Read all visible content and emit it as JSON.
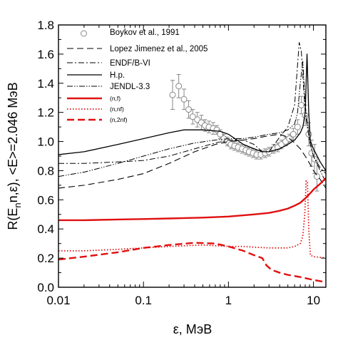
{
  "chart_data": {
    "type": "line",
    "xlabel": "ε, МэВ",
    "ylabel": "R(En,ε),  <E>=2.046 МэВ",
    "ylabel_sub": "n",
    "xscale": "log",
    "xlim": [
      0.01,
      14
    ],
    "ylim": [
      0.0,
      1.8
    ],
    "grid": false,
    "legend_position": "top-right",
    "xticks": [
      {
        "value": 0.01,
        "label": "0.01"
      },
      {
        "value": 0.1,
        "label": "0.1"
      },
      {
        "value": 1,
        "label": "1"
      },
      {
        "value": 10,
        "label": "10"
      }
    ],
    "yticks": [
      {
        "value": 0.0,
        "label": "0.0"
      },
      {
        "value": 0.2,
        "label": "0.2"
      },
      {
        "value": 0.4,
        "label": "0.4"
      },
      {
        "value": 0.6,
        "label": "0.6"
      },
      {
        "value": 0.8,
        "label": "0.8"
      },
      {
        "value": 1.0,
        "label": "1.0"
      },
      {
        "value": 1.2,
        "label": "1.2"
      },
      {
        "value": 1.4,
        "label": "1.4"
      },
      {
        "value": 1.6,
        "label": "1.6"
      },
      {
        "value": 1.8,
        "label": "1.8"
      }
    ],
    "series": [
      {
        "name": "Boykov et al., 1991",
        "kind": "points",
        "color": "#888888",
        "points": [
          {
            "x": 0.22,
            "y": 1.32,
            "err": 0.1
          },
          {
            "x": 0.26,
            "y": 1.38,
            "err": 0.08
          },
          {
            "x": 0.3,
            "y": 1.29,
            "err": 0.07
          },
          {
            "x": 0.34,
            "y": 1.22,
            "err": 0.06
          },
          {
            "x": 0.38,
            "y": 1.17,
            "err": 0.05
          },
          {
            "x": 0.43,
            "y": 1.15,
            "err": 0.05
          },
          {
            "x": 0.48,
            "y": 1.13,
            "err": 0.05
          },
          {
            "x": 0.53,
            "y": 1.11,
            "err": 0.04
          },
          {
            "x": 0.59,
            "y": 1.1,
            "err": 0.04
          },
          {
            "x": 0.66,
            "y": 1.09,
            "err": 0.04
          },
          {
            "x": 0.73,
            "y": 1.08,
            "err": 0.03
          },
          {
            "x": 0.8,
            "y": 1.05,
            "err": 0.03
          },
          {
            "x": 0.88,
            "y": 1.02,
            "err": 0.03
          },
          {
            "x": 0.97,
            "y": 1.0,
            "err": 0.03
          },
          {
            "x": 1.07,
            "y": 0.98,
            "err": 0.03
          },
          {
            "x": 1.18,
            "y": 0.97,
            "err": 0.03
          },
          {
            "x": 1.3,
            "y": 0.96,
            "err": 0.03
          },
          {
            "x": 1.45,
            "y": 0.95,
            "err": 0.03
          },
          {
            "x": 1.6,
            "y": 0.94,
            "err": 0.03
          },
          {
            "x": 1.75,
            "y": 0.93,
            "err": 0.03
          },
          {
            "x": 1.95,
            "y": 0.92,
            "err": 0.03
          },
          {
            "x": 2.15,
            "y": 0.91,
            "err": 0.03
          },
          {
            "x": 2.4,
            "y": 0.91,
            "err": 0.03
          },
          {
            "x": 2.7,
            "y": 0.92,
            "err": 0.03
          },
          {
            "x": 3.0,
            "y": 0.93,
            "err": 0.03
          },
          {
            "x": 3.4,
            "y": 0.95,
            "err": 0.03
          },
          {
            "x": 3.8,
            "y": 0.96,
            "err": 0.03
          },
          {
            "x": 4.2,
            "y": 0.98,
            "err": 0.03
          },
          {
            "x": 4.7,
            "y": 1.0,
            "err": 0.03
          },
          {
            "x": 5.2,
            "y": 1.02,
            "err": 0.03
          },
          {
            "x": 5.8,
            "y": 1.05,
            "err": 0.04
          },
          {
            "x": 6.5,
            "y": 1.1,
            "err": 0.05
          },
          {
            "x": 7.2,
            "y": 1.25,
            "err": 0.06
          },
          {
            "x": 8.0,
            "y": 1.18,
            "err": 0.07
          },
          {
            "x": 8.8,
            "y": 1.05,
            "err": 0.08
          },
          {
            "x": 9.5,
            "y": 0.92,
            "err": 0.09
          },
          {
            "x": 10.3,
            "y": 0.88,
            "err": 0.1
          },
          {
            "x": 11.0,
            "y": 0.76,
            "err": 0.1
          }
        ]
      },
      {
        "name": "Lopez Jimenez et al., 2005",
        "kind": "line",
        "style": "longdash",
        "color": "#000000",
        "x": [
          0.01,
          0.02,
          0.05,
          0.1,
          0.2,
          0.4,
          0.7,
          1.0,
          1.5,
          2.0,
          3.0,
          4.0,
          5.0,
          6.0,
          7.0,
          8.0,
          9.0,
          10.0,
          12.0,
          14.0
        ],
        "y": [
          0.68,
          0.7,
          0.74,
          0.78,
          0.85,
          0.93,
          0.98,
          1.0,
          1.01,
          1.02,
          1.04,
          1.05,
          1.03,
          0.99,
          0.95,
          0.9,
          0.85,
          0.8,
          0.74,
          0.68
        ]
      },
      {
        "name": "ENDF/B-VI",
        "kind": "line",
        "style": "dashdot",
        "color": "#000000",
        "x": [
          0.01,
          0.02,
          0.05,
          0.1,
          0.2,
          0.4,
          0.7,
          1.0,
          1.5,
          2.0,
          2.5,
          3.0,
          4.0,
          5.0,
          6.0,
          6.8,
          7.2,
          7.6,
          8.0,
          9.0,
          10.0,
          12.0,
          14.0
        ],
        "y": [
          0.85,
          0.85,
          0.86,
          0.87,
          0.9,
          0.95,
          0.99,
          1.01,
          1.01,
          0.98,
          0.93,
          0.93,
          1.03,
          1.1,
          1.25,
          1.68,
          1.62,
          1.4,
          1.2,
          1.0,
          0.9,
          0.82,
          0.78
        ]
      },
      {
        "name": "H.p.",
        "kind": "line",
        "style": "solid",
        "color": "#000000",
        "x": [
          0.01,
          0.02,
          0.05,
          0.1,
          0.2,
          0.3,
          0.5,
          0.8,
          1.0,
          1.5,
          2.0,
          2.5,
          3.0,
          4.0,
          5.0,
          6.0,
          7.0,
          7.5,
          8.0,
          8.4,
          8.8,
          9.2,
          10.0,
          12.0,
          14.0
        ],
        "y": [
          0.91,
          0.93,
          0.98,
          1.02,
          1.06,
          1.08,
          1.08,
          1.07,
          1.05,
          0.98,
          0.95,
          0.93,
          0.93,
          0.95,
          0.98,
          1.01,
          1.06,
          1.1,
          1.2,
          1.6,
          1.2,
          1.0,
          0.95,
          0.86,
          0.8
        ]
      },
      {
        "name": "JENDL-3.3",
        "kind": "line",
        "style": "dashdotdot",
        "color": "#000000",
        "x": [
          0.01,
          0.02,
          0.05,
          0.1,
          0.2,
          0.4,
          0.7,
          1.0,
          1.5,
          2.0,
          3.0,
          4.0,
          5.0,
          6.0,
          6.5,
          7.0,
          7.5,
          8.0,
          9.0,
          10.0,
          12.0,
          14.0
        ],
        "y": [
          0.76,
          0.79,
          0.85,
          0.9,
          0.95,
          0.99,
          1.01,
          1.02,
          1.02,
          1.03,
          1.05,
          1.06,
          1.08,
          1.12,
          1.2,
          1.4,
          1.55,
          1.25,
          1.0,
          0.9,
          0.8,
          0.72
        ]
      },
      {
        "name": "(n,f)",
        "kind": "line",
        "style": "solid-thick",
        "color": "#e01010",
        "x": [
          0.01,
          0.02,
          0.05,
          0.1,
          0.2,
          0.5,
          1.0,
          2.0,
          3.0,
          4.0,
          5.0,
          6.0,
          7.0,
          8.0,
          9.0,
          10.0,
          12.0,
          14.0
        ],
        "y": [
          0.46,
          0.46,
          0.465,
          0.468,
          0.472,
          0.478,
          0.485,
          0.5,
          0.51,
          0.525,
          0.54,
          0.56,
          0.58,
          0.61,
          0.64,
          0.67,
          0.71,
          0.75
        ]
      },
      {
        "name": "(n,nf)",
        "kind": "line",
        "style": "dotted",
        "color": "#e01010",
        "x": [
          0.01,
          0.02,
          0.05,
          0.1,
          0.2,
          0.5,
          1.0,
          1.5,
          2.0,
          3.0,
          4.0,
          5.0,
          6.0,
          6.5,
          7.0,
          7.5,
          7.9,
          8.2,
          8.5,
          8.8,
          9.2,
          10.0,
          12.0,
          14.0
        ],
        "y": [
          0.25,
          0.25,
          0.26,
          0.27,
          0.28,
          0.29,
          0.28,
          0.28,
          0.275,
          0.27,
          0.27,
          0.27,
          0.28,
          0.29,
          0.3,
          0.35,
          0.5,
          0.73,
          0.72,
          0.4,
          0.22,
          0.21,
          0.205,
          0.2
        ]
      },
      {
        "name": "(n,2nf)",
        "kind": "line",
        "style": "dashed-thick",
        "color": "#e01010",
        "x": [
          0.01,
          0.02,
          0.05,
          0.1,
          0.2,
          0.4,
          0.7,
          1.0,
          1.5,
          2.0,
          2.5,
          2.8,
          3.2,
          4.0,
          5.0,
          7.0,
          10.0,
          14.0
        ],
        "y": [
          0.19,
          0.21,
          0.24,
          0.27,
          0.29,
          0.305,
          0.3,
          0.28,
          0.25,
          0.22,
          0.2,
          0.15,
          0.12,
          0.1,
          0.085,
          0.07,
          0.05,
          0.035
        ]
      }
    ]
  }
}
